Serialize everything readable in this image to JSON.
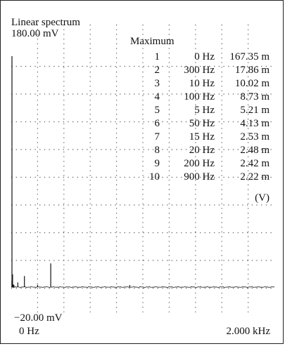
{
  "panel": {
    "title": "Linear spectrum",
    "y_top_label": "180.00 mV",
    "y_bottom_label": "−20.00 mV",
    "x_left_label": "0 Hz",
    "x_right_label": "2.000 kHz",
    "table_title": "Maximum",
    "table_unit": "(V)"
  },
  "maxima": [
    {
      "rank": "1",
      "freq": "0 Hz",
      "value": "167.35 m"
    },
    {
      "rank": "2",
      "freq": "300 Hz",
      "value": "17.86 m"
    },
    {
      "rank": "3",
      "freq": "10 Hz",
      "value": "10.02 m"
    },
    {
      "rank": "4",
      "freq": "100 Hz",
      "value": "8.73 m"
    },
    {
      "rank": "5",
      "freq": "5 Hz",
      "value": "5.21 m"
    },
    {
      "rank": "6",
      "freq": "50 Hz",
      "value": "4.13 m"
    },
    {
      "rank": "7",
      "freq": "15 Hz",
      "value": "2.53 m"
    },
    {
      "rank": "8",
      "freq": "20 Hz",
      "value": "2.48 m"
    },
    {
      "rank": "9",
      "freq": "200 Hz",
      "value": "2.42 m"
    },
    {
      "rank": "10",
      "freq": "900 Hz",
      "value": "2.22 m"
    }
  ],
  "chart_data": {
    "type": "line",
    "title": "Linear spectrum",
    "xlabel": "",
    "ylabel": "",
    "xlim": [
      0,
      2000
    ],
    "ylim": [
      -20,
      180
    ],
    "x_unit": "Hz",
    "y_unit": "mV",
    "grid": true,
    "peaks_hz": [
      0,
      5,
      10,
      15,
      20,
      50,
      100,
      200,
      300,
      900
    ],
    "peaks_mV": [
      167.35,
      5.21,
      10.02,
      2.53,
      2.48,
      4.13,
      8.73,
      2.42,
      17.86,
      2.22
    ],
    "noise_floor_mV": 0.8
  }
}
